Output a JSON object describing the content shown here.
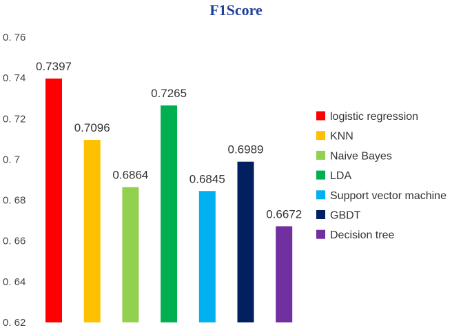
{
  "chart_data": {
    "type": "bar",
    "title": "F1Score",
    "categories": [
      "logistic regression",
      "KNN",
      "Naive Bayes",
      "LDA",
      "Support vector machine",
      "GBDT",
      "Decision tree"
    ],
    "values": [
      0.7397,
      0.7096,
      0.6864,
      0.7265,
      0.6845,
      0.6989,
      0.6672
    ],
    "data_labels": [
      "0.7397",
      "0.7096",
      "0.6864",
      "0.7265",
      "0.6845",
      "0.6989",
      "0.6672"
    ],
    "colors": [
      "#ff0000",
      "#ffc000",
      "#92d050",
      "#00b050",
      "#00b0f0",
      "#002060",
      "#7030a0"
    ],
    "ylim": [
      0.62,
      0.76
    ],
    "yticks": [
      0.62,
      0.64,
      0.66,
      0.68,
      0.7,
      0.72,
      0.74,
      0.76
    ],
    "ytick_labels": [
      "0. 62",
      "0. 64",
      "0. 66",
      "0. 68",
      "0. 7",
      "0. 72",
      "0. 74",
      "0. 76"
    ],
    "xlabel": "",
    "ylabel": "",
    "grid": false,
    "legend_position": "right",
    "legend": [
      "logistic regression",
      "KNN",
      "Naive Bayes",
      "LDA",
      "Support vector machine",
      "GBDT",
      "Decision tree"
    ]
  }
}
